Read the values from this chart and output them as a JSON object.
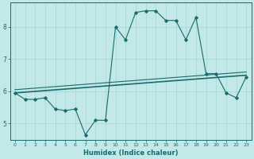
{
  "title": "",
  "xlabel": "Humidex (Indice chaleur)",
  "bg_color": "#c2e8e8",
  "line_color": "#1a6b6b",
  "grid_color": "#a8d4d4",
  "xlim": [
    -0.5,
    23.5
  ],
  "ylim": [
    4.5,
    8.75
  ],
  "xticks": [
    0,
    1,
    2,
    3,
    4,
    5,
    6,
    7,
    8,
    9,
    10,
    11,
    12,
    13,
    14,
    15,
    16,
    17,
    18,
    19,
    20,
    21,
    22,
    23
  ],
  "yticks": [
    5,
    6,
    7,
    8
  ],
  "line1_x": [
    0,
    1,
    2,
    3,
    4,
    5,
    6,
    7,
    8,
    9,
    10,
    11,
    12,
    13,
    14,
    15,
    16,
    17,
    18,
    19,
    20,
    21,
    22,
    23
  ],
  "line1_y": [
    5.95,
    5.75,
    5.75,
    5.8,
    5.45,
    5.4,
    5.45,
    4.65,
    5.1,
    5.1,
    8.0,
    7.6,
    8.45,
    8.5,
    8.5,
    8.2,
    8.2,
    7.6,
    8.3,
    6.55,
    6.55,
    5.95,
    5.8,
    6.45
  ],
  "line2_x": [
    0,
    23
  ],
  "line2_y": [
    5.95,
    6.5
  ],
  "line3_x": [
    0,
    23
  ],
  "line3_y": [
    6.05,
    6.6
  ]
}
